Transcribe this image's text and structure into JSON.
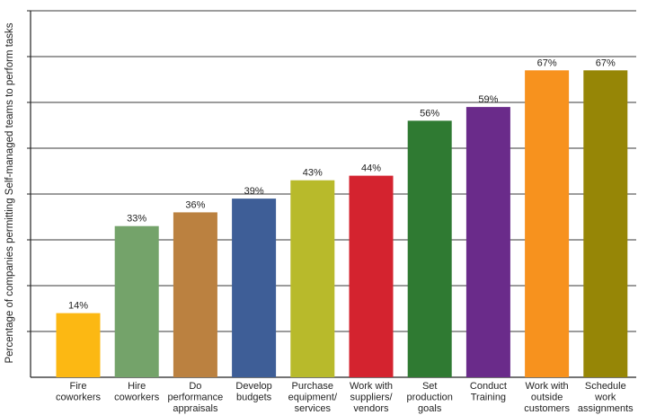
{
  "chart_data": {
    "type": "bar",
    "title": "",
    "xlabel": "",
    "ylabel": "Percentage of companies permitting Self-managed teams to perform tasks",
    "ylim": [
      0,
      80
    ],
    "grid": true,
    "categories": [
      [
        "Fire",
        "coworkers"
      ],
      [
        "Hire",
        "coworkers"
      ],
      [
        "Do",
        "performance",
        "appraisals"
      ],
      [
        "Develop",
        "budgets"
      ],
      [
        "Purchase",
        "equipment/",
        "services"
      ],
      [
        "Work with",
        "suppliers/",
        "vendors"
      ],
      [
        "Set",
        "production",
        "goals"
      ],
      [
        "Conduct",
        "Training"
      ],
      [
        "Work with",
        "outside",
        "customers"
      ],
      [
        "Schedule",
        "work",
        "assignments"
      ]
    ],
    "values": [
      14,
      33,
      36,
      39,
      43,
      44,
      56,
      59,
      67,
      67
    ],
    "data_labels": [
      "14%",
      "33%",
      "36%",
      "39%",
      "43%",
      "44%",
      "56%",
      "59%",
      "67%",
      "67%"
    ],
    "colors": [
      "#fcb813",
      "#74a36a",
      "#bb8140",
      "#3e5e97",
      "#b8ba2b",
      "#d4232f",
      "#2f7a32",
      "#6a2b8a",
      "#f7921e",
      "#968606"
    ]
  }
}
